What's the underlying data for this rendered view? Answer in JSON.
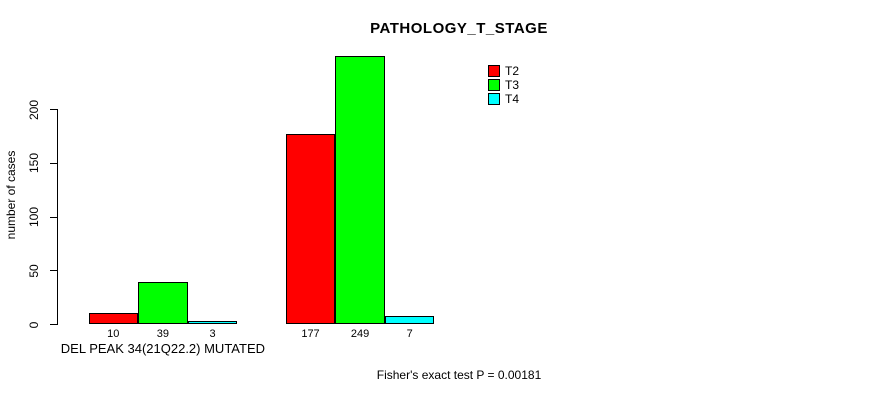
{
  "chart_data": {
    "type": "bar",
    "title": "PATHOLOGY_T_STAGE",
    "ylabel": "number of cases",
    "footnote": "Fisher's exact test P = 0.00181",
    "ylim": [
      0,
      200
    ],
    "yticks": [
      0,
      50,
      100,
      150,
      200
    ],
    "grid": false,
    "legend_position": "top-right-inside",
    "bar_value_labels_shown": true,
    "categories": [
      {
        "label": "DEL PEAK 34(21Q22.2) MUTATED"
      },
      {
        "label": ""
      }
    ],
    "series": [
      {
        "name": "T2",
        "color": "#FF0000",
        "values": [
          10,
          177
        ]
      },
      {
        "name": "T3",
        "color": "#00FF00",
        "values": [
          39,
          249
        ]
      },
      {
        "name": "T4",
        "color": "#00FFFF",
        "values": [
          3,
          7
        ]
      }
    ]
  },
  "colors": {
    "background": "#FFFFFF",
    "axis": "#000000",
    "text": "#000000",
    "bar_border": "#000000"
  }
}
